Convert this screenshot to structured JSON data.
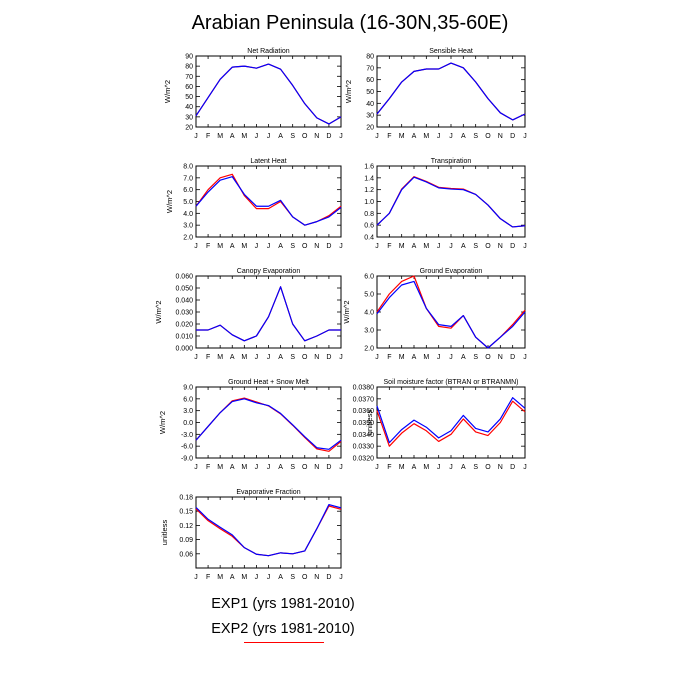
{
  "title": "Arabian Peninsula (16-30N,35-60E)",
  "colors": {
    "exp1": "#0000ff",
    "exp2": "#ff0000",
    "axis": "#000000"
  },
  "legend": [
    {
      "label": "EXP1 (yrs 1981-2010)",
      "color": "#0000ff"
    },
    {
      "label": "EXP2 (yrs 1981-2010)",
      "color": "#ff0000"
    }
  ],
  "chart_data": [
    {
      "type": "line",
      "title": "Net Radiation",
      "ylabel": "W/m^2",
      "x": [
        "J",
        "F",
        "M",
        "A",
        "M",
        "J",
        "J",
        "A",
        "S",
        "O",
        "N",
        "D",
        "J"
      ],
      "ylim": [
        20,
        90
      ],
      "yticks": [
        "20",
        "30",
        "40",
        "50",
        "60",
        "70",
        "80",
        "90"
      ],
      "series": [
        {
          "values": [
            31,
            49,
            67,
            79,
            80,
            78,
            82,
            77,
            61,
            43,
            29,
            23,
            30
          ],
          "color": "#0000ff"
        },
        {
          "values": [
            31,
            49,
            67,
            79,
            80,
            78,
            82,
            77,
            61,
            43,
            29,
            23,
            30
          ],
          "color": "#ff0000"
        }
      ]
    },
    {
      "type": "line",
      "title": "Sensible Heat",
      "ylabel": "W/m^2",
      "x": [
        "J",
        "F",
        "M",
        "A",
        "M",
        "J",
        "J",
        "A",
        "S",
        "O",
        "N",
        "D",
        "J"
      ],
      "ylim": [
        20,
        80
      ],
      "yticks": [
        "20",
        "30",
        "40",
        "50",
        "60",
        "70",
        "80"
      ],
      "series": [
        {
          "values": [
            31,
            44,
            58,
            67,
            69,
            69,
            74,
            70,
            58,
            44,
            32,
            26,
            31
          ],
          "color": "#0000ff"
        },
        {
          "values": [
            31,
            44,
            58,
            67,
            69,
            69,
            74,
            70,
            58,
            44,
            32,
            26,
            31
          ],
          "color": "#ff0000"
        }
      ]
    },
    {
      "type": "line",
      "title": "Latent Heat",
      "ylabel": "W/m^2",
      "x": [
        "J",
        "F",
        "M",
        "A",
        "M",
        "J",
        "J",
        "A",
        "S",
        "O",
        "N",
        "D",
        "J"
      ],
      "ylim": [
        2.0,
        8.0
      ],
      "yticks": [
        "2.0",
        "3.0",
        "4.0",
        "5.0",
        "6.0",
        "7.0",
        "8.0"
      ],
      "series": [
        {
          "values": [
            4.6,
            5.8,
            6.8,
            7.1,
            5.6,
            4.6,
            4.6,
            5.1,
            3.7,
            3.0,
            3.3,
            3.7,
            4.5
          ],
          "color": "#0000ff"
        },
        {
          "values": [
            4.6,
            6.0,
            7.0,
            7.3,
            5.5,
            4.4,
            4.4,
            5.0,
            3.7,
            3.0,
            3.3,
            3.8,
            4.6
          ],
          "color": "#ff0000"
        }
      ]
    },
    {
      "type": "line",
      "title": "Transpiration",
      "ylabel": "",
      "x": [
        "J",
        "F",
        "M",
        "A",
        "M",
        "J",
        "J",
        "A",
        "S",
        "O",
        "N",
        "D",
        "J"
      ],
      "ylim": [
        0.4,
        1.6
      ],
      "yticks": [
        "0.4",
        "0.6",
        "0.8",
        "1.0",
        "1.2",
        "1.4",
        "1.6"
      ],
      "series": [
        {
          "values": [
            0.6,
            0.8,
            1.2,
            1.41,
            1.33,
            1.23,
            1.21,
            1.2,
            1.12,
            0.94,
            0.71,
            0.57,
            0.59
          ],
          "color": "#0000ff"
        },
        {
          "values": [
            0.6,
            0.8,
            1.21,
            1.42,
            1.34,
            1.24,
            1.22,
            1.21,
            1.12,
            0.94,
            0.71,
            0.57,
            0.59
          ],
          "color": "#ff0000"
        }
      ]
    },
    {
      "type": "line",
      "title": "Canopy Evaporation",
      "ylabel": "W/m^2",
      "x": [
        "J",
        "F",
        "M",
        "A",
        "M",
        "J",
        "J",
        "A",
        "S",
        "O",
        "N",
        "D",
        "J"
      ],
      "ylim": [
        0,
        0.06
      ],
      "yticks": [
        "0.000",
        "0.010",
        "0.020",
        "0.030",
        "0.040",
        "0.050",
        "0.060"
      ],
      "series": [
        {
          "values": [
            0.015,
            0.015,
            0.019,
            0.011,
            0.006,
            0.01,
            0.026,
            0.051,
            0.02,
            0.006,
            0.01,
            0.015,
            0.015
          ],
          "color": "#0000ff"
        },
        {
          "values": [
            0.015,
            0.015,
            0.019,
            0.011,
            0.006,
            0.01,
            0.026,
            0.051,
            0.02,
            0.006,
            0.01,
            0.015,
            0.015
          ],
          "color": "#ff0000"
        }
      ]
    },
    {
      "type": "line",
      "title": "Ground Evaporation",
      "ylabel": "W/m^2",
      "x": [
        "J",
        "F",
        "M",
        "A",
        "M",
        "J",
        "J",
        "A",
        "S",
        "O",
        "N",
        "D",
        "J"
      ],
      "ylim": [
        2.0,
        6.0
      ],
      "yticks": [
        "2.0",
        "3.0",
        "4.0",
        "5.0",
        "6.0"
      ],
      "series": [
        {
          "values": [
            3.9,
            4.8,
            5.5,
            5.7,
            4.2,
            3.3,
            3.2,
            3.8,
            2.6,
            2.0,
            2.6,
            3.2,
            4.0
          ],
          "color": "#0000ff"
        },
        {
          "values": [
            4.0,
            5.0,
            5.7,
            6.0,
            4.2,
            3.2,
            3.1,
            3.8,
            2.6,
            2.0,
            2.6,
            3.3,
            4.1
          ],
          "color": "#ff0000"
        }
      ]
    },
    {
      "type": "line",
      "title": "Ground Heat + Snow Melt",
      "ylabel": "W/m^2",
      "x": [
        "J",
        "F",
        "M",
        "A",
        "M",
        "J",
        "J",
        "A",
        "S",
        "O",
        "N",
        "D",
        "J"
      ],
      "ylim": [
        -9,
        9
      ],
      "yticks": [
        "-9.0",
        "-6.0",
        "-3.0",
        "0.0",
        "3.0",
        "6.0",
        "9.0"
      ],
      "series": [
        {
          "values": [
            -4.5,
            -1.0,
            2.5,
            5.3,
            6.0,
            5.0,
            4.3,
            2.3,
            -0.6,
            -3.6,
            -6.4,
            -6.8,
            -4.5
          ],
          "color": "#0000ff"
        },
        {
          "values": [
            -4.5,
            -1.0,
            2.5,
            5.5,
            6.2,
            5.2,
            4.2,
            2.2,
            -0.7,
            -3.8,
            -6.7,
            -7.3,
            -4.8
          ],
          "color": "#ff0000"
        }
      ]
    },
    {
      "type": "line",
      "title": "Soil moisture factor (BTRAN or BTRANMN)",
      "ylabel": "unitless",
      "x": [
        "J",
        "F",
        "M",
        "A",
        "M",
        "J",
        "J",
        "A",
        "S",
        "O",
        "N",
        "D",
        "J"
      ],
      "ylim": [
        0.032,
        0.038
      ],
      "yticks": [
        "0.0320",
        "0.0330",
        "0.0340",
        "0.0350",
        "0.0360",
        "0.0370",
        "0.0380"
      ],
      "series": [
        {
          "values": [
            0.0364,
            0.0333,
            0.0344,
            0.0352,
            0.0346,
            0.0337,
            0.0343,
            0.0356,
            0.0345,
            0.0342,
            0.0353,
            0.0371,
            0.0362
          ],
          "color": "#0000ff"
        },
        {
          "values": [
            0.036,
            0.033,
            0.0341,
            0.0349,
            0.0343,
            0.0334,
            0.034,
            0.0353,
            0.0342,
            0.0339,
            0.035,
            0.0368,
            0.0359
          ],
          "color": "#ff0000"
        }
      ]
    },
    {
      "type": "line",
      "title": "Evaporative Fraction",
      "ylabel": "unitless",
      "x": [
        "J",
        "F",
        "M",
        "A",
        "M",
        "J",
        "J",
        "A",
        "S",
        "O",
        "N",
        "D",
        "J"
      ],
      "ylim": [
        0.03,
        0.18
      ],
      "yticks": [
        "0.06",
        "0.09",
        "0.12",
        "0.15",
        "0.18"
      ],
      "series": [
        {
          "values": [
            0.158,
            0.133,
            0.116,
            0.1,
            0.073,
            0.059,
            0.056,
            0.062,
            0.06,
            0.066,
            0.113,
            0.164,
            0.157
          ],
          "color": "#0000ff"
        },
        {
          "values": [
            0.155,
            0.13,
            0.113,
            0.097,
            0.073,
            0.059,
            0.056,
            0.062,
            0.06,
            0.066,
            0.113,
            0.161,
            0.154
          ],
          "color": "#ff0000"
        }
      ]
    }
  ]
}
